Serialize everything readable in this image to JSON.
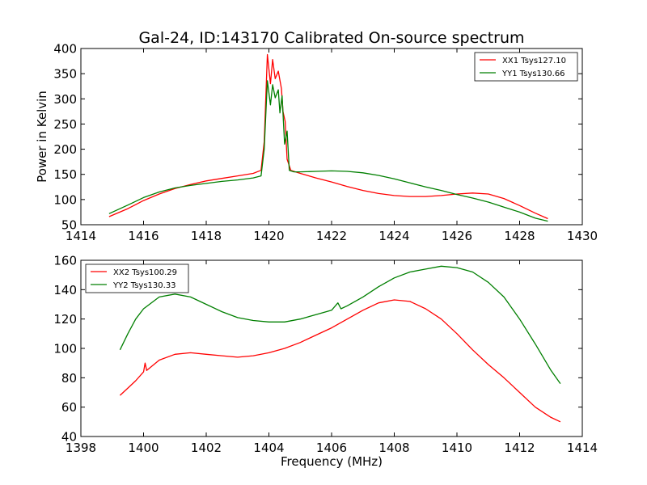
{
  "chart_data": [
    {
      "type": "line",
      "title": "Gal-24, ID:143170 Calibrated On-source spectrum",
      "xlabel": "",
      "ylabel": "Power in Kelvin",
      "xlim": [
        1414,
        1430
      ],
      "ylim": [
        50,
        400
      ],
      "xticks": [
        1414,
        1416,
        1418,
        1420,
        1422,
        1424,
        1426,
        1428,
        1430
      ],
      "yticks": [
        50,
        100,
        150,
        200,
        250,
        300,
        350,
        400
      ],
      "legend_position": "upper-right",
      "series": [
        {
          "name": "XX1 Tsys127.10",
          "color": "#ff0000",
          "points": [
            [
              1414.9,
              66
            ],
            [
              1415.5,
              82
            ],
            [
              1416.0,
              98
            ],
            [
              1416.5,
              111
            ],
            [
              1417.0,
              122
            ],
            [
              1417.5,
              130
            ],
            [
              1418.0,
              137
            ],
            [
              1418.5,
              142
            ],
            [
              1419.0,
              147
            ],
            [
              1419.5,
              152
            ],
            [
              1419.75,
              158
            ],
            [
              1419.85,
              215
            ],
            [
              1419.95,
              388
            ],
            [
              1420.05,
              330
            ],
            [
              1420.12,
              378
            ],
            [
              1420.2,
              340
            ],
            [
              1420.3,
              355
            ],
            [
              1420.4,
              320
            ],
            [
              1420.45,
              275
            ],
            [
              1420.52,
              255
            ],
            [
              1420.58,
              180
            ],
            [
              1420.7,
              158
            ],
            [
              1421.0,
              152
            ],
            [
              1421.5,
              143
            ],
            [
              1422.0,
              135
            ],
            [
              1422.5,
              126
            ],
            [
              1423.0,
              118
            ],
            [
              1423.5,
              112
            ],
            [
              1424.0,
              108
            ],
            [
              1424.5,
              106
            ],
            [
              1425.0,
              106
            ],
            [
              1425.5,
              108
            ],
            [
              1426.0,
              111
            ],
            [
              1426.5,
              113
            ],
            [
              1427.0,
              111
            ],
            [
              1427.5,
              102
            ],
            [
              1428.0,
              88
            ],
            [
              1428.5,
              73
            ],
            [
              1428.9,
              62
            ]
          ]
        },
        {
          "name": "YY1 Tsys130.66",
          "color": "#007f00",
          "points": [
            [
              1414.9,
              72
            ],
            [
              1415.5,
              89
            ],
            [
              1416.0,
              104
            ],
            [
              1416.5,
              115
            ],
            [
              1417.0,
              123
            ],
            [
              1417.5,
              128
            ],
            [
              1418.0,
              132
            ],
            [
              1418.5,
              136
            ],
            [
              1419.0,
              139
            ],
            [
              1419.5,
              143
            ],
            [
              1419.75,
              147
            ],
            [
              1419.85,
              200
            ],
            [
              1419.95,
              336
            ],
            [
              1420.05,
              288
            ],
            [
              1420.12,
              328
            ],
            [
              1420.2,
              302
            ],
            [
              1420.3,
              318
            ],
            [
              1420.35,
              272
            ],
            [
              1420.42,
              306
            ],
            [
              1420.5,
              210
            ],
            [
              1420.58,
              236
            ],
            [
              1420.65,
              158
            ],
            [
              1420.8,
              155
            ],
            [
              1421.0,
              155
            ],
            [
              1421.5,
              156
            ],
            [
              1422.0,
              157
            ],
            [
              1422.5,
              156
            ],
            [
              1423.0,
              153
            ],
            [
              1423.5,
              148
            ],
            [
              1424.0,
              141
            ],
            [
              1424.5,
              133
            ],
            [
              1425.0,
              125
            ],
            [
              1425.5,
              118
            ],
            [
              1426.0,
              110
            ],
            [
              1426.5,
              103
            ],
            [
              1427.0,
              95
            ],
            [
              1427.5,
              85
            ],
            [
              1428.0,
              75
            ],
            [
              1428.5,
              63
            ],
            [
              1428.9,
              57
            ]
          ]
        }
      ]
    },
    {
      "type": "line",
      "title": "",
      "xlabel": "Frequency (MHz)",
      "ylabel": "",
      "xlim": [
        1398,
        1414
      ],
      "ylim": [
        40,
        160
      ],
      "xticks": [
        1398,
        1400,
        1402,
        1404,
        1406,
        1408,
        1410,
        1412,
        1414
      ],
      "yticks": [
        40,
        60,
        80,
        100,
        120,
        140,
        160
      ],
      "legend_position": "upper-left",
      "series": [
        {
          "name": "XX2 Tsys100.29",
          "color": "#ff0000",
          "points": [
            [
              1399.25,
              68
            ],
            [
              1399.5,
              73
            ],
            [
              1399.75,
              78
            ],
            [
              1400.0,
              84
            ],
            [
              1400.05,
              90
            ],
            [
              1400.1,
              85
            ],
            [
              1400.5,
              92
            ],
            [
              1401.0,
              96
            ],
            [
              1401.5,
              97
            ],
            [
              1402.0,
              96
            ],
            [
              1402.5,
              95
            ],
            [
              1403.0,
              94
            ],
            [
              1403.5,
              95
            ],
            [
              1404.0,
              97
            ],
            [
              1404.5,
              100
            ],
            [
              1405.0,
              104
            ],
            [
              1405.5,
              109
            ],
            [
              1406.0,
              114
            ],
            [
              1406.5,
              120
            ],
            [
              1407.0,
              126
            ],
            [
              1407.5,
              131
            ],
            [
              1408.0,
              133
            ],
            [
              1408.5,
              132
            ],
            [
              1409.0,
              127
            ],
            [
              1409.5,
              120
            ],
            [
              1410.0,
              110
            ],
            [
              1410.5,
              99
            ],
            [
              1411.0,
              89
            ],
            [
              1411.5,
              80
            ],
            [
              1412.0,
              70
            ],
            [
              1412.5,
              60
            ],
            [
              1413.0,
              53
            ],
            [
              1413.3,
              50
            ]
          ]
        },
        {
          "name": "YY2 Tsys130.33",
          "color": "#007f00",
          "points": [
            [
              1399.25,
              99
            ],
            [
              1399.5,
              110
            ],
            [
              1399.75,
              120
            ],
            [
              1400.0,
              127
            ],
            [
              1400.5,
              135
            ],
            [
              1401.0,
              137
            ],
            [
              1401.5,
              135
            ],
            [
              1402.0,
              130
            ],
            [
              1402.5,
              125
            ],
            [
              1403.0,
              121
            ],
            [
              1403.5,
              119
            ],
            [
              1404.0,
              118
            ],
            [
              1404.5,
              118
            ],
            [
              1405.0,
              120
            ],
            [
              1405.5,
              123
            ],
            [
              1406.0,
              126
            ],
            [
              1406.2,
              131
            ],
            [
              1406.3,
              127
            ],
            [
              1406.5,
              129
            ],
            [
              1407.0,
              135
            ],
            [
              1407.5,
              142
            ],
            [
              1408.0,
              148
            ],
            [
              1408.5,
              152
            ],
            [
              1409.0,
              154
            ],
            [
              1409.5,
              156
            ],
            [
              1410.0,
              155
            ],
            [
              1410.5,
              152
            ],
            [
              1411.0,
              145
            ],
            [
              1411.5,
              135
            ],
            [
              1412.0,
              120
            ],
            [
              1412.5,
              103
            ],
            [
              1413.0,
              85
            ],
            [
              1413.3,
              76
            ]
          ]
        }
      ]
    }
  ]
}
